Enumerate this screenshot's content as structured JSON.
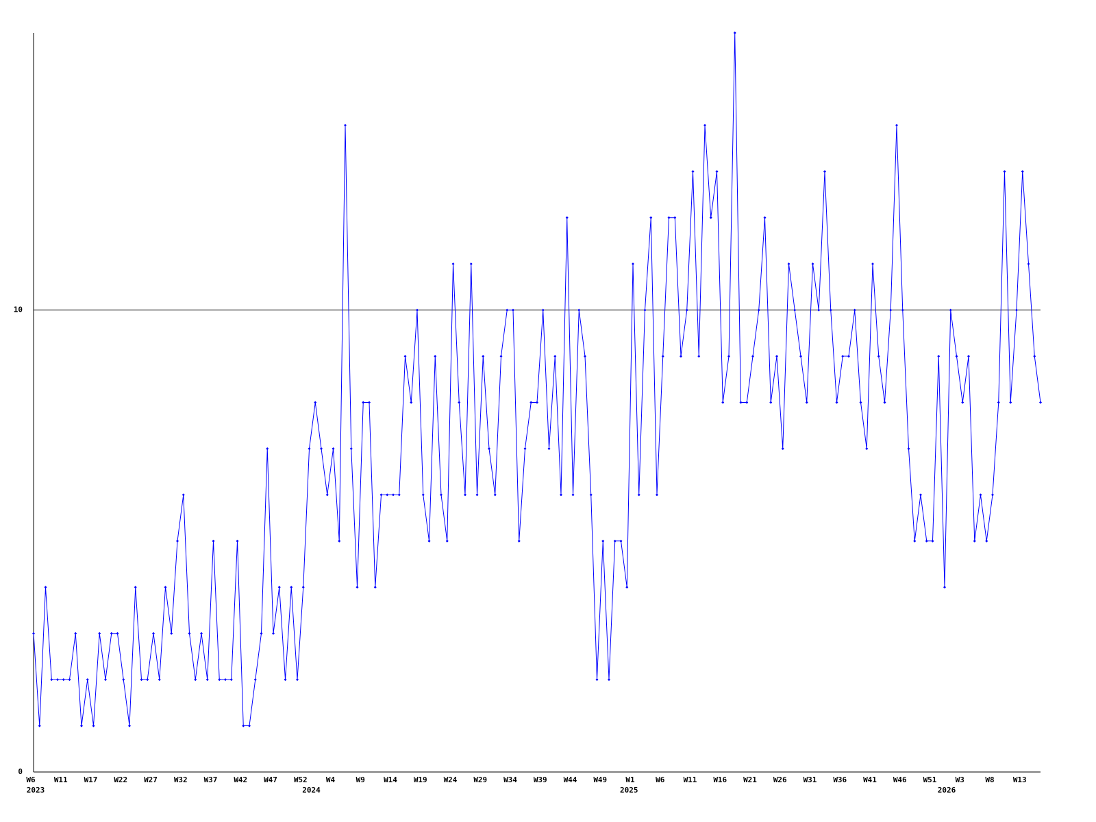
{
  "chart_data": {
    "type": "line",
    "categories": [
      "W6",
      null,
      null,
      null,
      null,
      "W11",
      null,
      null,
      null,
      null,
      "W17",
      null,
      null,
      null,
      null,
      "W22",
      null,
      null,
      null,
      null,
      "W27",
      null,
      null,
      null,
      null,
      "W32",
      null,
      null,
      null,
      null,
      "W37",
      null,
      null,
      null,
      null,
      "W42",
      null,
      null,
      null,
      null,
      "W47",
      null,
      null,
      null,
      null,
      "W52",
      null,
      null,
      null,
      null,
      "W4",
      null,
      null,
      null,
      null,
      "W9",
      null,
      null,
      null,
      null,
      "W14",
      null,
      null,
      null,
      null,
      "W19",
      null,
      null,
      null,
      null,
      "W24",
      null,
      null,
      null,
      null,
      "W29",
      null,
      null,
      null,
      null,
      "W34",
      null,
      null,
      null,
      null,
      "W39",
      null,
      null,
      null,
      null,
      "W44",
      null,
      null,
      null,
      null,
      "W49",
      null,
      null,
      null,
      null,
      "W1",
      null,
      null,
      null,
      null,
      "W6",
      null,
      null,
      null,
      null,
      "W11",
      null,
      null,
      null,
      null,
      "W16",
      null,
      null,
      null,
      null,
      "W21",
      null,
      null,
      null,
      null,
      "W26",
      null,
      null,
      null,
      null,
      "W31",
      null,
      null,
      null,
      null,
      "W36",
      null,
      null,
      null,
      null,
      "W41",
      null,
      null,
      null,
      null,
      "W46",
      null,
      null,
      null,
      null,
      "W51",
      null,
      null,
      null,
      null,
      "W3",
      null,
      null,
      null,
      null,
      "W8",
      null,
      null,
      null,
      null,
      "W13",
      null,
      null,
      null
    ],
    "category_years": [
      "2023",
      null,
      null,
      null,
      null,
      null,
      null,
      null,
      null,
      null,
      null,
      null,
      null,
      null,
      null,
      null,
      null,
      null,
      null,
      null,
      null,
      null,
      null,
      null,
      null,
      null,
      null,
      null,
      null,
      null,
      null,
      null,
      null,
      null,
      null,
      null,
      null,
      null,
      null,
      null,
      null,
      null,
      null,
      null,
      null,
      null,
      "2024",
      null,
      null,
      null,
      null,
      null,
      null,
      null,
      null,
      null,
      null,
      null,
      null,
      null,
      null,
      null,
      null,
      null,
      null,
      null,
      null,
      null,
      null,
      null,
      null,
      null,
      null,
      null,
      null,
      null,
      null,
      null,
      null,
      null,
      null,
      null,
      null,
      null,
      null,
      null,
      null,
      null,
      null,
      null,
      null,
      null,
      null,
      null,
      null,
      null,
      null,
      null,
      null,
      "2025",
      null,
      null,
      null,
      null,
      null,
      null,
      null,
      null,
      null,
      null,
      null,
      null,
      null,
      null,
      null,
      null,
      null,
      null,
      null,
      null,
      null,
      null,
      null,
      null,
      null,
      null,
      null,
      null,
      null,
      null,
      null,
      null,
      null,
      null,
      null,
      null,
      null,
      null,
      null,
      null,
      null,
      null,
      null,
      null,
      null,
      null,
      null,
      null,
      null,
      null,
      null,
      null,
      "2026",
      null,
      null,
      null,
      null,
      null,
      null,
      null,
      null,
      null,
      null,
      null,
      null,
      null,
      null,
      null,
      null
    ],
    "series": [
      {
        "color": "#0000ff",
        "values": [
          3,
          1,
          4,
          2,
          2,
          2,
          2,
          3,
          1,
          2,
          1,
          3,
          2,
          3,
          3,
          2,
          1,
          4,
          2,
          2,
          3,
          2,
          4,
          3,
          5,
          6,
          3,
          2,
          3,
          2,
          5,
          2,
          2,
          2,
          5,
          1,
          1,
          2,
          3,
          7,
          3,
          4,
          2,
          4,
          2,
          4,
          7,
          8,
          7,
          6,
          7,
          5,
          14,
          7,
          4,
          8,
          8,
          4,
          6,
          6,
          6,
          6,
          9,
          8,
          10,
          6,
          5,
          9,
          6,
          5,
          11,
          8,
          6,
          11,
          6,
          9,
          7,
          6,
          9,
          10,
          10,
          5,
          7,
          8,
          8,
          10,
          7,
          9,
          6,
          12,
          6,
          10,
          9,
          6,
          2,
          5,
          2,
          5,
          5,
          4,
          11,
          6,
          10,
          12,
          6,
          9,
          12,
          12,
          9,
          10,
          13,
          9,
          14,
          12,
          13,
          8,
          9,
          16,
          8,
          8,
          9,
          10,
          12,
          8,
          9,
          7,
          11,
          10,
          9,
          8,
          11,
          10,
          13,
          10,
          8,
          9,
          9,
          10,
          8,
          7,
          11,
          9,
          8,
          10,
          14,
          10,
          7,
          5,
          6,
          5,
          5,
          9,
          4,
          10,
          9,
          8,
          9,
          5,
          6,
          5,
          6,
          8,
          13,
          8,
          10,
          13,
          11,
          9,
          8
        ]
      }
    ],
    "ylim": [
      0,
      16
    ],
    "yticks": [
      0,
      10
    ],
    "grid": true
  }
}
